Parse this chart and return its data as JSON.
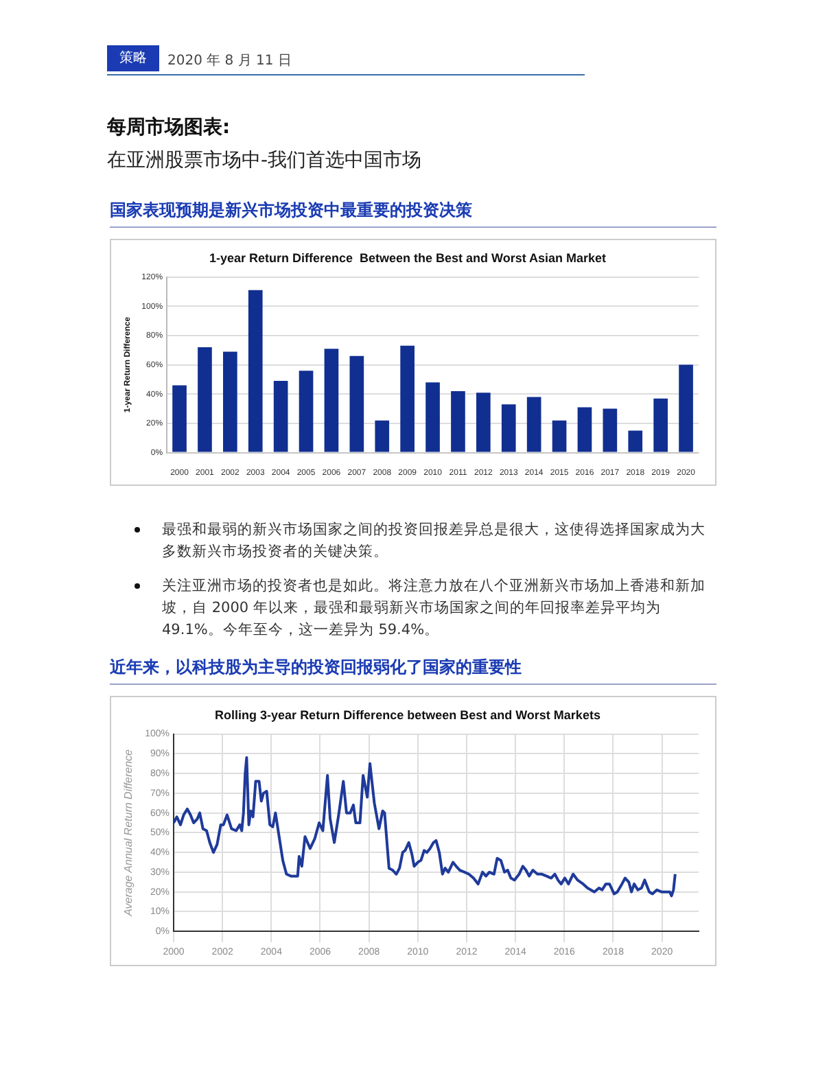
{
  "chart_data": [
    {
      "type": "bar",
      "title": "1-year Return Difference  Between the Best and Worst Asian Market",
      "subtitle": "国家表现预期是新兴市场投资中最重要的投资决策",
      "ylabel": "1-year Return Difference",
      "categories": [
        "2000",
        "2001",
        "2002",
        "2003",
        "2004",
        "2005",
        "2006",
        "2007",
        "2008",
        "2009",
        "2010",
        "2011",
        "2012",
        "2013",
        "2014",
        "2015",
        "2016",
        "2017",
        "2018",
        "2019",
        "2020"
      ],
      "values": [
        46,
        72,
        69,
        111,
        49,
        56,
        71,
        66,
        22,
        73,
        48,
        42,
        41,
        33,
        38,
        22,
        31,
        30,
        15,
        37,
        60
      ],
      "color": "#112f91",
      "ylim": [
        0,
        120
      ],
      "yticks": [
        {
          "value": 0,
          "label": "0%"
        },
        {
          "value": 20,
          "label": "20%"
        },
        {
          "value": 40,
          "label": "40%"
        },
        {
          "value": 60,
          "label": "60%"
        },
        {
          "value": 80,
          "label": "80%"
        },
        {
          "value": 100,
          "label": "100%"
        },
        {
          "value": 120,
          "label": "120%"
        }
      ],
      "grid": "y",
      "legend": false,
      "annotations": [
        "策略",
        "2020 年 8 月 11 日",
        "每周市场图表:",
        "在亚洲股票市场中-我们首选中国市场",
        "最强和最弱的新兴市场国家之间的投资回报差异总是很大，这使得选择国家成为大多数新兴市场投资者的关键决策。",
        "关注亚洲市场的投资者也是如此。将注意力放在八个亚洲新兴市场加上香港和新加坡，自 2000 年以来，最强和最弱新兴市场国家之间的年回报率差异平均为 49.1%。今年至今，这一差异为 59.4%。"
      ]
    },
    {
      "type": "line",
      "title": "Rolling 3-year Return Difference between Best and Worst Markets",
      "subtitle": "近年来，以科技股为主导的投资回报弱化了国家的重要性",
      "ylabel": "Average Annual Return Difference",
      "x": [
        2000.0,
        2000.13,
        2000.28,
        2000.41,
        2000.56,
        2000.69,
        2000.82,
        2000.97,
        2001.07,
        2001.2,
        2001.35,
        2001.48,
        2001.63,
        2001.78,
        2001.93,
        2002.04,
        2002.19,
        2002.37,
        2002.56,
        2002.71,
        2002.79,
        2002.86,
        2002.93,
        2002.99,
        2003.08,
        2003.16,
        2003.25,
        2003.36,
        2003.5,
        2003.59,
        2003.68,
        2003.81,
        2003.94,
        2004.06,
        2004.17,
        2004.47,
        2004.62,
        2004.8,
        2005.08,
        2005.14,
        2005.25,
        2005.38,
        2005.59,
        2005.78,
        2005.96,
        2006.11,
        2006.3,
        2006.41,
        2006.58,
        2006.77,
        2006.95,
        2007.08,
        2007.23,
        2007.36,
        2007.46,
        2007.63,
        2007.76,
        2007.93,
        2008.04,
        2008.22,
        2008.41,
        2008.56,
        2008.64,
        2008.82,
        2008.97,
        2009.12,
        2009.25,
        2009.38,
        2009.48,
        2009.63,
        2009.76,
        2009.85,
        2010.0,
        2010.13,
        2010.26,
        2010.37,
        2010.5,
        2010.64,
        2010.75,
        2010.88,
        2011.01,
        2011.12,
        2011.25,
        2011.44,
        2011.57,
        2011.72,
        2011.91,
        2012.09,
        2012.28,
        2012.47,
        2012.65,
        2012.79,
        2012.93,
        2013.12,
        2013.25,
        2013.4,
        2013.55,
        2013.68,
        2013.81,
        2013.96,
        2014.15,
        2014.3,
        2014.43,
        2014.56,
        2014.71,
        2014.9,
        2015.08,
        2015.27,
        2015.46,
        2015.61,
        2015.74,
        2015.87,
        2016.02,
        2016.17,
        2016.36,
        2016.54,
        2016.77,
        2016.95,
        2017.23,
        2017.42,
        2017.55,
        2017.7,
        2017.85,
        2018.04,
        2018.17,
        2018.36,
        2018.49,
        2018.64,
        2018.75,
        2018.86,
        2019.01,
        2019.16,
        2019.29,
        2019.48,
        2019.61,
        2019.79,
        2019.98,
        2020.13,
        2020.32,
        2020.39,
        2020.47,
        2020.54
      ],
      "values": [
        55,
        58,
        54,
        59,
        62,
        59,
        55,
        57,
        60,
        52,
        51,
        45,
        40,
        44,
        54,
        54,
        59,
        52,
        51,
        54,
        51,
        60,
        80,
        88,
        54,
        61,
        58,
        76,
        76,
        66,
        70,
        71,
        54,
        53,
        60,
        36,
        29,
        28,
        28,
        38,
        33,
        48,
        42,
        47,
        55,
        51,
        79,
        57,
        45,
        60,
        76,
        60,
        60,
        64,
        55,
        55,
        79,
        68,
        85,
        65,
        52,
        61,
        60,
        32,
        31,
        29,
        32,
        40,
        41,
        45,
        39,
        33,
        35,
        36,
        41,
        40,
        42,
        45,
        46,
        40,
        29,
        32,
        30,
        35,
        33,
        31,
        30,
        29,
        27,
        24,
        30,
        28,
        30,
        29,
        37,
        36,
        30,
        31,
        27,
        26,
        29,
        33,
        31,
        28,
        31,
        29,
        29,
        28,
        27,
        29,
        26,
        24,
        27,
        24,
        29,
        26,
        24,
        22,
        20,
        22,
        21,
        24,
        24,
        19,
        20,
        24,
        27,
        25,
        20,
        24,
        21,
        22,
        26,
        20,
        19,
        21,
        20,
        20,
        20,
        18,
        21,
        29
      ],
      "color": "#1f3a9a",
      "xlim": [
        2000,
        2021.5
      ],
      "xticks": [
        2000,
        2002,
        2004,
        2006,
        2008,
        2010,
        2012,
        2014,
        2016,
        2018,
        2020
      ],
      "ylim": [
        0,
        100
      ],
      "yticks": [
        {
          "value": 0,
          "label": "0%"
        },
        {
          "value": 10,
          "label": "10%"
        },
        {
          "value": 20,
          "label": "20%"
        },
        {
          "value": 30,
          "label": "30%"
        },
        {
          "value": 40,
          "label": "40%"
        },
        {
          "value": 50,
          "label": "50%"
        },
        {
          "value": 60,
          "label": "60%"
        },
        {
          "value": 70,
          "label": "70%"
        },
        {
          "value": 80,
          "label": "80%"
        },
        {
          "value": 90,
          "label": "90%"
        },
        {
          "value": 100,
          "label": "100%"
        }
      ],
      "grid": true,
      "legend": false,
      "marker": "none",
      "line_style": "solid"
    }
  ]
}
